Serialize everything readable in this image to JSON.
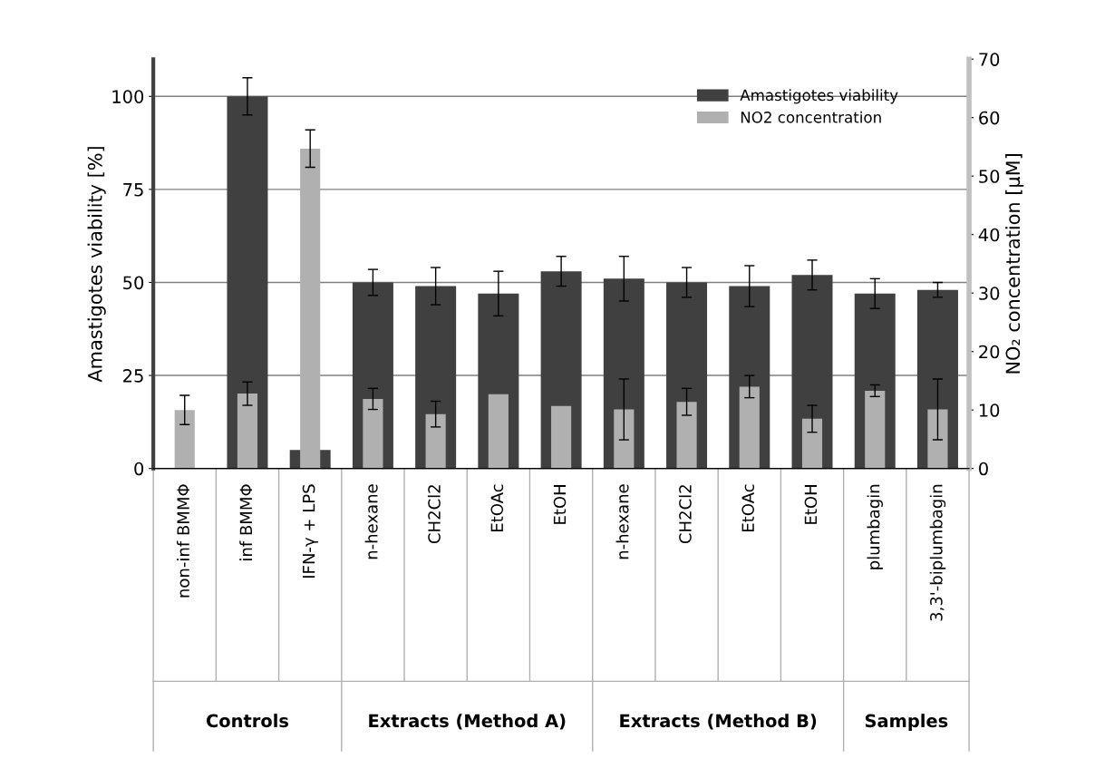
{
  "chart_data": {
    "type": "bar",
    "ylabel": "Amastigotes viability [%]",
    "y2label": "NO₂ concentration [µM]",
    "categories": [
      "non-inf BMMΦ",
      "inf BMMΦ",
      "IFN-γ + LPS",
      "n-hexane",
      "CH2Cl2",
      "EtOAc",
      "EtOH",
      "n-hexane",
      "CH2Cl2",
      "EtOAc",
      "EtOH",
      "plumbagin",
      "3,3'-biplumbagin"
    ],
    "series": [
      {
        "name": "Amastigotes viability",
        "color": "#404040",
        "values": [
          null,
          100,
          5,
          50,
          49,
          47,
          53,
          51,
          50,
          49,
          52,
          47,
          48
        ],
        "errors": [
          null,
          5,
          null,
          3.5,
          5,
          6,
          4,
          6,
          4,
          5.5,
          4,
          4,
          2
        ]
      },
      {
        "name": "NO2 concentration",
        "color": "#b0b0b0",
        "axis": "y2",
        "values": [
          10,
          12.8,
          54.7,
          11.9,
          9.3,
          12.7,
          10.7,
          10.1,
          11.4,
          14,
          8.5,
          13.3,
          10.1
        ],
        "errors": [
          2.5,
          2,
          3.2,
          1.8,
          2.2,
          null,
          null,
          5.2,
          2.3,
          1.9,
          2.3,
          1,
          5.2
        ]
      }
    ],
    "ylim": [
      0,
      110
    ],
    "yticks": [
      0,
      25,
      50,
      75,
      100
    ],
    "y2lim": [
      0,
      70
    ],
    "y2ticks": [
      0,
      10,
      20,
      30,
      40,
      50,
      60,
      70
    ],
    "grid": "y",
    "legend": "top right",
    "annotations": [
      "Controls",
      "Extracts (Method A)",
      "Extracts (Method B)",
      "Samples"
    ]
  }
}
